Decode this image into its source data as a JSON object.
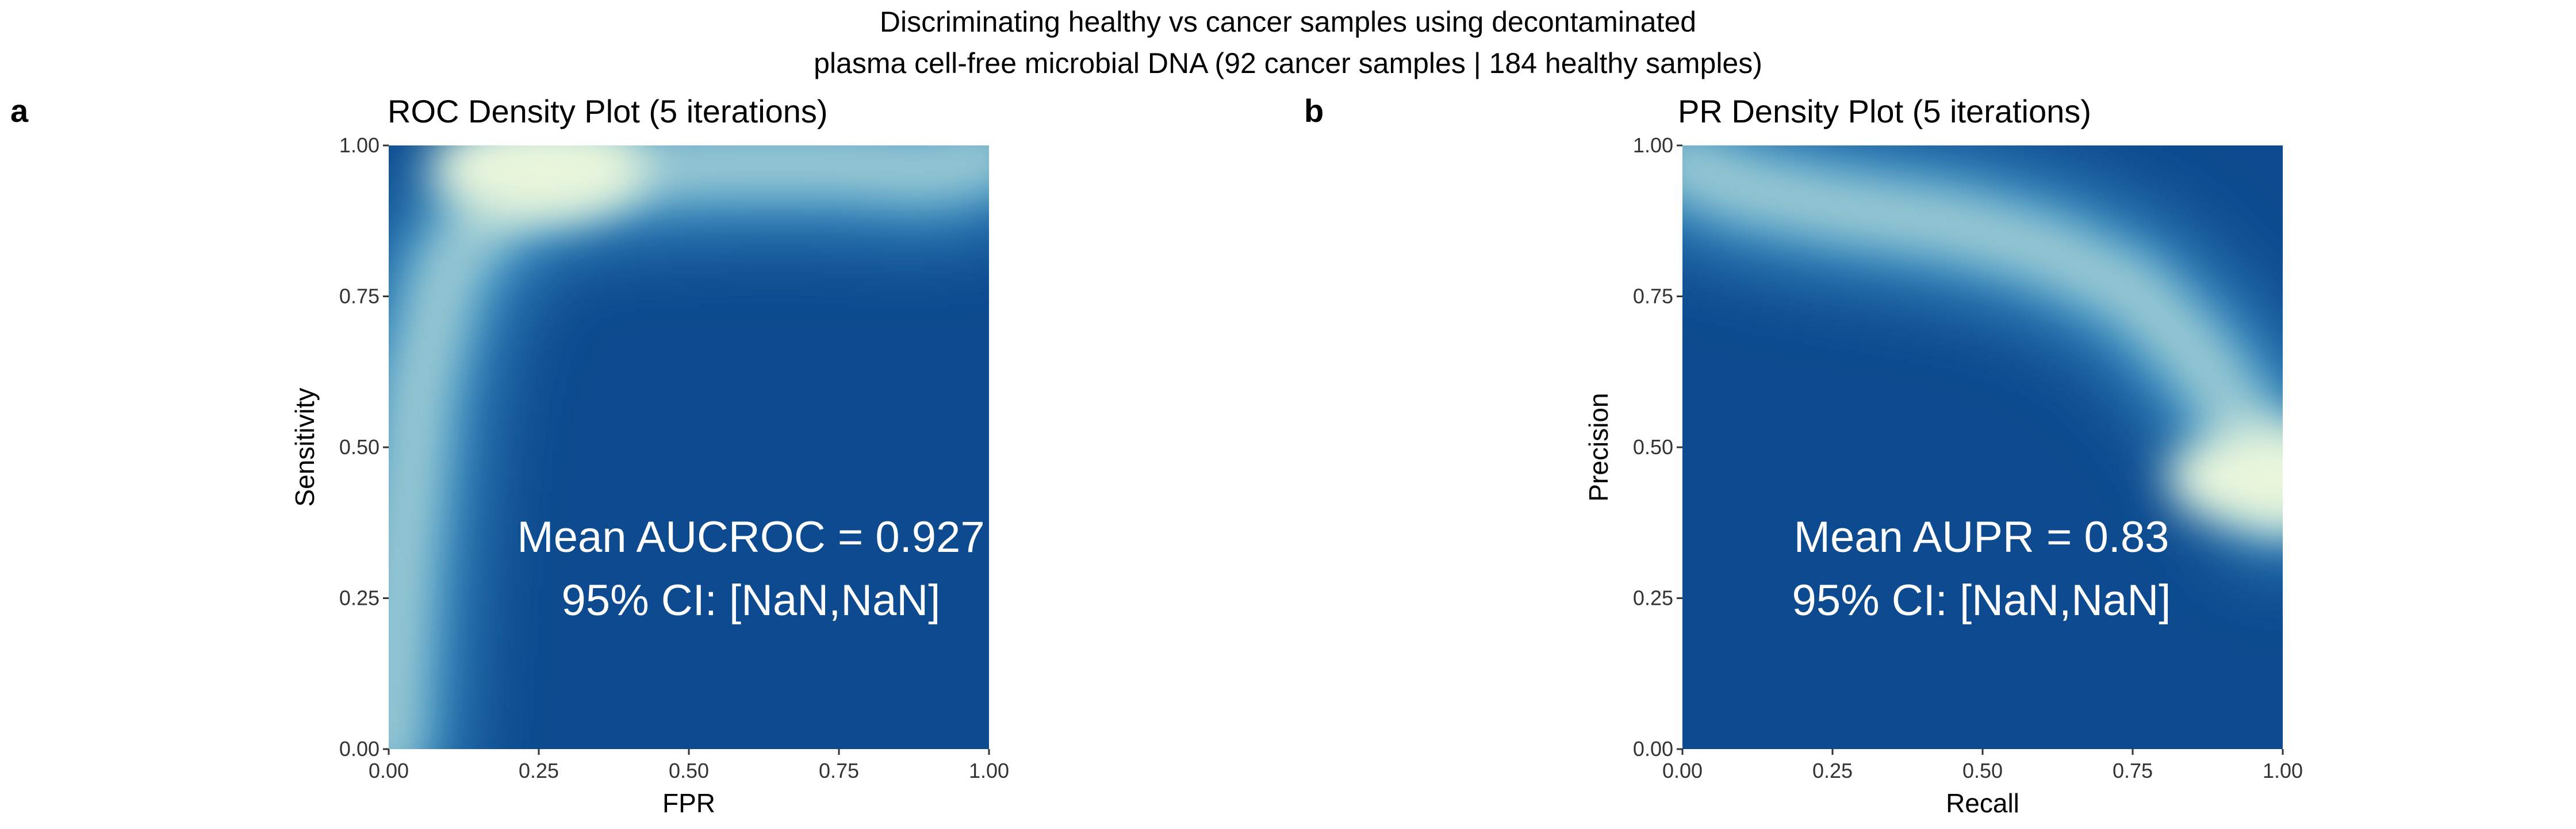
{
  "figure": {
    "suptitle_line1": "Discriminating healthy vs cancer samples using decontaminated",
    "suptitle_line2": "plasma cell-free microbial DNA (92 cancer samples | 184 healthy samples)"
  },
  "chart_data": [
    {
      "type": "heatmap",
      "panel": "a",
      "title": "ROC Density Plot (5 iterations)",
      "xlabel": "FPR",
      "ylabel": "Sensitivity",
      "xlim": [
        0,
        1
      ],
      "ylim": [
        0,
        1
      ],
      "xticks": [
        "0.00",
        "0.25",
        "0.50",
        "0.75",
        "1.00"
      ],
      "yticks": [
        "0.00",
        "0.25",
        "0.50",
        "0.75",
        "1.00"
      ],
      "annotation_line1": "Mean AUCROC = 0.927",
      "annotation_line2": "95% CI: [NaN,NaN]",
      "colors": {
        "low": "#0d4a8f",
        "mid": "#3c95c8",
        "high": "#e9f6dc"
      },
      "density_path": [
        [
          0.0,
          0.0
        ],
        [
          0.02,
          0.3
        ],
        [
          0.05,
          0.6
        ],
        [
          0.1,
          0.8
        ],
        [
          0.2,
          0.92
        ],
        [
          0.35,
          0.96
        ],
        [
          0.55,
          0.97
        ],
        [
          0.75,
          0.97
        ],
        [
          0.9,
          0.96
        ],
        [
          1.0,
          0.98
        ]
      ],
      "density_peak": [
        0.25,
        0.96
      ]
    },
    {
      "type": "heatmap",
      "panel": "b",
      "title": "PR Density Plot (5 iterations)",
      "xlabel": "Recall",
      "ylabel": "Precision",
      "xlim": [
        0,
        1
      ],
      "ylim": [
        0,
        1
      ],
      "xticks": [
        "0.00",
        "0.25",
        "0.50",
        "0.75",
        "1.00"
      ],
      "yticks": [
        "0.00",
        "0.25",
        "0.50",
        "0.75",
        "1.00"
      ],
      "annotation_line1": "Mean AUPR = 0.83",
      "annotation_line2": "95% CI: [NaN,NaN]",
      "colors": {
        "low": "#0d4a8f",
        "mid": "#3c95c8",
        "high": "#e9f6dc"
      },
      "density_path": [
        [
          0.0,
          0.97
        ],
        [
          0.1,
          0.93
        ],
        [
          0.25,
          0.9
        ],
        [
          0.45,
          0.87
        ],
        [
          0.6,
          0.83
        ],
        [
          0.75,
          0.76
        ],
        [
          0.85,
          0.66
        ],
        [
          0.93,
          0.55
        ],
        [
          0.97,
          0.47
        ],
        [
          1.0,
          0.42
        ]
      ],
      "density_peak": [
        0.99,
        0.45
      ]
    }
  ]
}
